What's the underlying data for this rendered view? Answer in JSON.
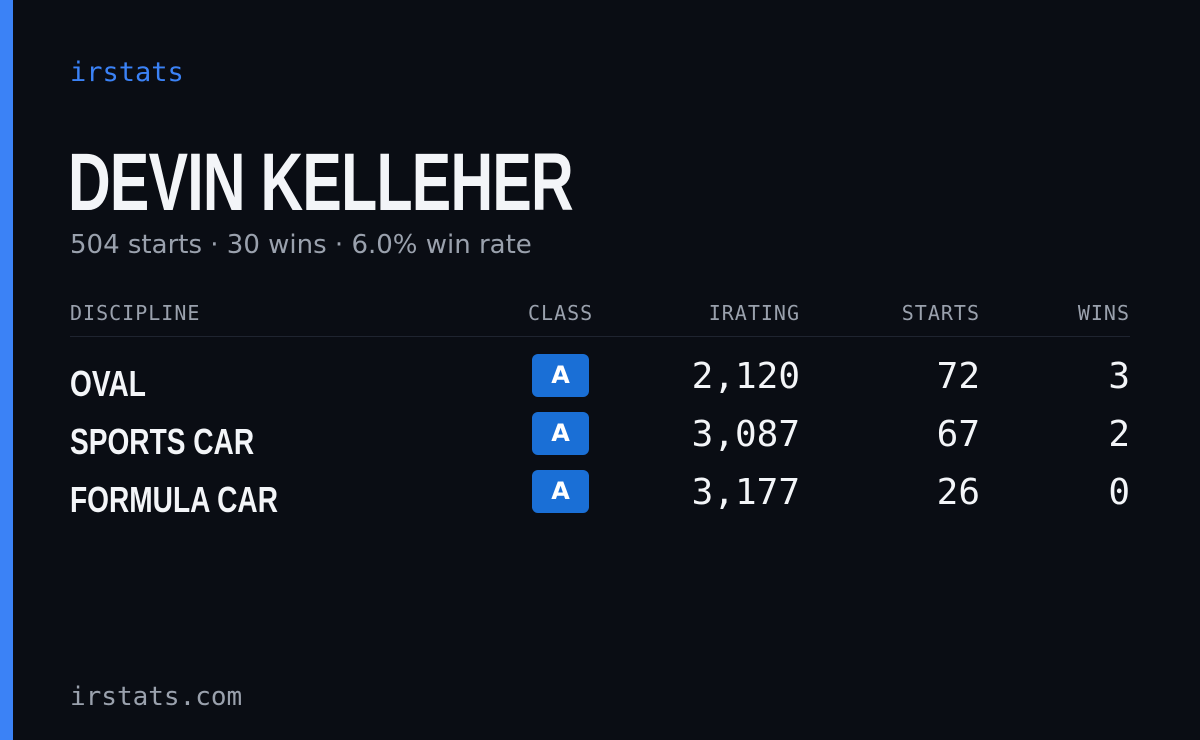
{
  "brand": {
    "name": "irstats"
  },
  "driver": {
    "name": "DEVIN KELLEHER",
    "summary": "504 starts · 30 wins · 6.0% win rate"
  },
  "table": {
    "columns": {
      "discipline": "DISCIPLINE",
      "class": "CLASS",
      "irating": "IRATING",
      "starts": "STARTS",
      "wins": "WINS"
    },
    "rows": [
      {
        "discipline": "OVAL",
        "class": "A",
        "irating": "2,120",
        "starts": "72",
        "wins": "3"
      },
      {
        "discipline": "SPORTS CAR",
        "class": "A",
        "irating": "3,087",
        "starts": "67",
        "wins": "2"
      },
      {
        "discipline": "FORMULA CAR",
        "class": "A",
        "irating": "3,177",
        "starts": "26",
        "wins": "0"
      }
    ]
  },
  "footer": {
    "domain": "irstats.com"
  },
  "colors": {
    "background": "#0a0d14",
    "accent": "#3b82f6",
    "class_a_badge": "#1a6fd6",
    "text_primary": "#f3f5f8",
    "text_muted": "#9aa1ad"
  }
}
